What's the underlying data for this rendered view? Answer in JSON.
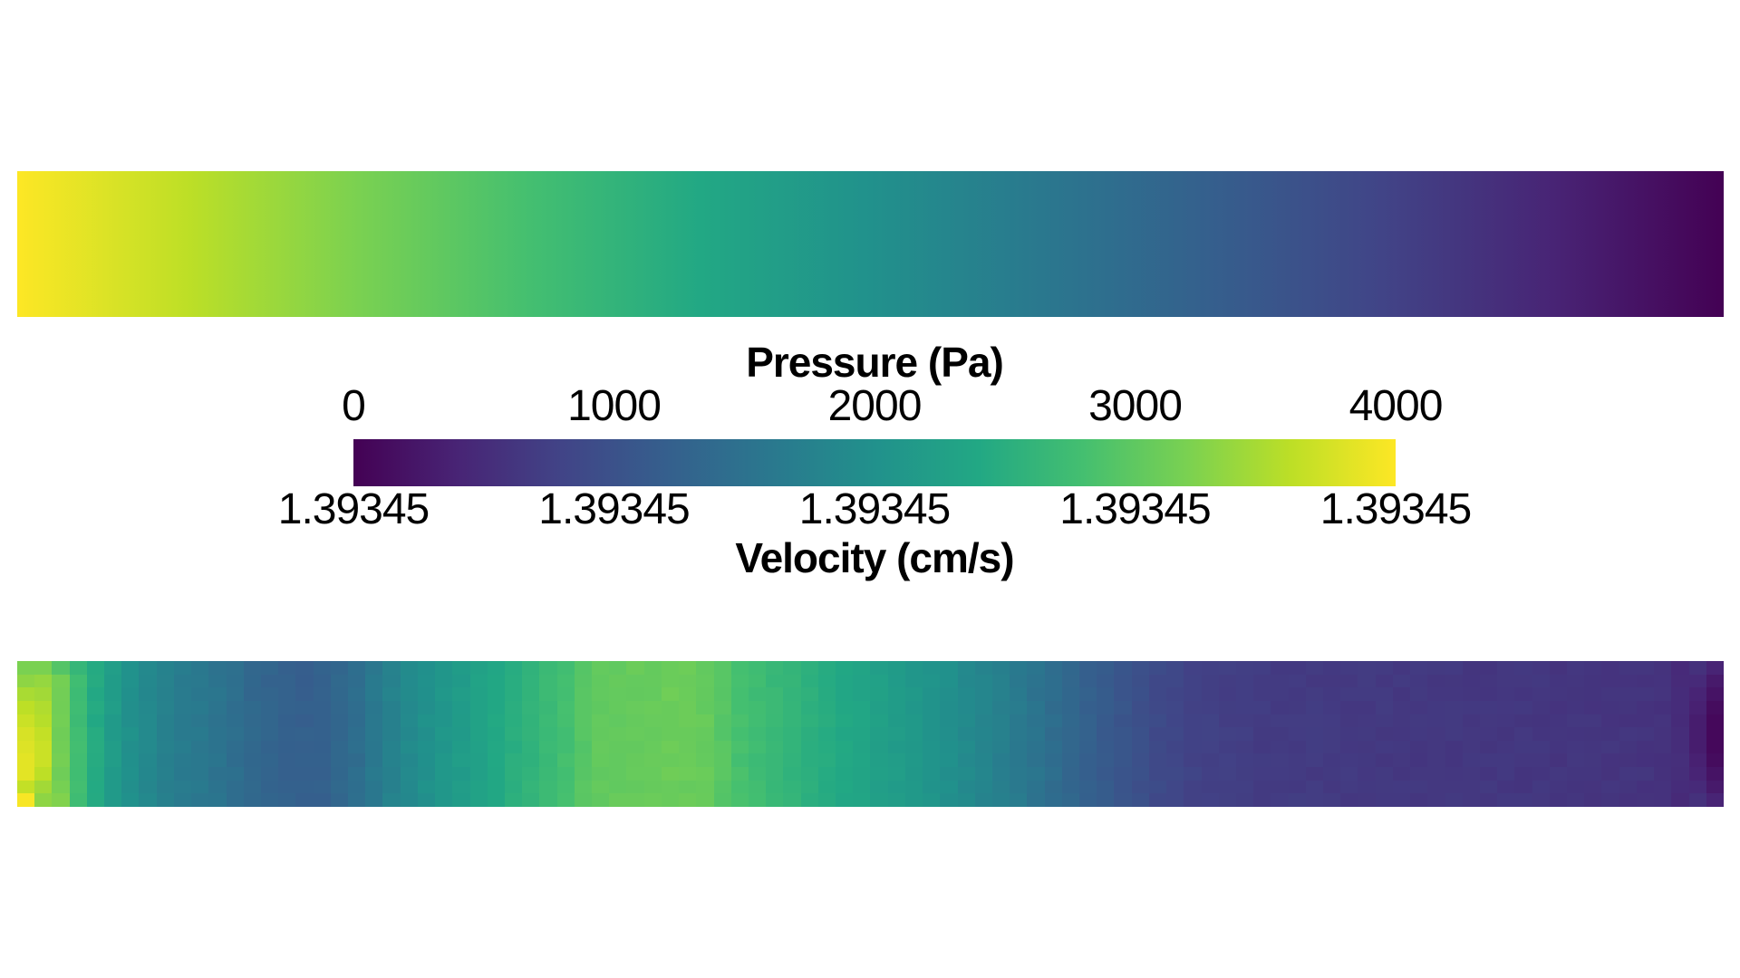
{
  "page": {
    "background": "#ffffff",
    "description": "Scientific visualization: pressure field bar (top), shared viridis color legend (middle), velocity field cell grid (bottom)"
  },
  "colormap_stops": [
    "#440154",
    "#482475",
    "#414487",
    "#355f8d",
    "#2a788e",
    "#21918c",
    "#22a884",
    "#44bf70",
    "#7ad151",
    "#bddf26",
    "#fde725"
  ],
  "legend": {
    "colormap": "viridis",
    "pressure": {
      "title": "Pressure (Pa)",
      "ticks": [
        "0",
        "1000",
        "2000",
        "3000",
        "4000"
      ]
    },
    "velocity": {
      "title": "Velocity (cm/s)",
      "ticks": [
        "1.39345",
        "1.39345",
        "1.39345",
        "1.39345",
        "1.39345"
      ]
    }
  },
  "chart_data": [
    {
      "type": "heatmap",
      "name": "pressure-field",
      "quantity": "Pressure (Pa)",
      "render": "smooth-horizontal-gradient",
      "value_left": 4000,
      "value_right": 0,
      "value_range": [
        0,
        4000
      ],
      "colormap": "viridis"
    },
    {
      "type": "heatmap",
      "name": "velocity-field",
      "quantity": "Velocity (cm/s)",
      "render": "blocky-cell-grid",
      "tick_value": "1.39345",
      "colormap": "viridis",
      "grid": {
        "cols": 98,
        "rows": 11
      },
      "profile": {
        "x_fraction": [
          0.0,
          0.01,
          0.02,
          0.03,
          0.04,
          0.05,
          0.061,
          0.071,
          0.081,
          0.091,
          0.101,
          0.121,
          0.141,
          0.165,
          0.18,
          0.2,
          0.213,
          0.224,
          0.24,
          0.266,
          0.293,
          0.319,
          0.335,
          0.346,
          0.367,
          0.385,
          0.405,
          0.425,
          0.457,
          0.484,
          0.51,
          0.537,
          0.563,
          0.59,
          0.617,
          0.643,
          0.67,
          0.696,
          0.73,
          0.8,
          0.88,
          0.94,
          0.962,
          0.975,
          0.988,
          1.0
        ],
        "t": [
          0.93,
          0.91,
          0.84,
          0.74,
          0.65,
          0.58,
          0.52,
          0.48,
          0.45,
          0.42,
          0.41,
          0.375,
          0.33,
          0.3,
          0.31,
          0.36,
          0.42,
          0.455,
          0.5,
          0.56,
          0.63,
          0.69,
          0.745,
          0.76,
          0.765,
          0.775,
          0.76,
          0.7,
          0.645,
          0.6,
          0.555,
          0.51,
          0.46,
          0.4,
          0.33,
          0.27,
          0.22,
          0.19,
          0.175,
          0.165,
          0.158,
          0.152,
          0.148,
          0.125,
          0.07,
          0.05
        ]
      },
      "cell_overrides": [
        [
          0,
          0,
          0.8
        ],
        [
          0,
          1,
          0.83
        ],
        [
          0,
          2,
          0.87
        ],
        [
          0,
          3,
          0.9
        ],
        [
          0,
          4,
          0.92
        ],
        [
          0,
          5,
          0.94
        ],
        [
          0,
          6,
          0.95
        ],
        [
          0,
          7,
          0.96
        ],
        [
          0,
          8,
          0.96
        ],
        [
          0,
          9,
          0.91
        ],
        [
          0,
          10,
          0.99
        ],
        [
          1,
          0,
          0.8
        ],
        [
          1,
          1,
          0.84
        ],
        [
          1,
          2,
          0.86
        ],
        [
          1,
          3,
          0.88
        ],
        [
          1,
          4,
          0.89
        ],
        [
          1,
          5,
          0.91
        ],
        [
          1,
          6,
          0.92
        ],
        [
          1,
          7,
          0.92
        ],
        [
          1,
          8,
          0.9
        ],
        [
          1,
          9,
          0.86
        ],
        [
          1,
          10,
          0.83
        ],
        [
          2,
          0,
          0.73
        ],
        [
          2,
          10,
          0.81
        ],
        [
          3,
          0,
          0.66
        ],
        [
          96,
          0,
          0.14
        ],
        [
          96,
          1,
          0.12
        ],
        [
          96,
          2,
          0.1
        ],
        [
          96,
          3,
          0.09
        ],
        [
          96,
          4,
          0.08
        ],
        [
          96,
          5,
          0.08
        ],
        [
          96,
          6,
          0.08
        ],
        [
          96,
          7,
          0.09
        ],
        [
          96,
          8,
          0.1
        ],
        [
          96,
          9,
          0.12
        ],
        [
          96,
          10,
          0.14
        ],
        [
          97,
          0,
          0.1
        ],
        [
          97,
          1,
          0.07
        ],
        [
          97,
          2,
          0.05
        ],
        [
          97,
          3,
          0.03
        ],
        [
          97,
          4,
          0.02
        ],
        [
          97,
          5,
          0.02
        ],
        [
          97,
          6,
          0.02
        ],
        [
          97,
          7,
          0.03
        ],
        [
          97,
          8,
          0.05
        ],
        [
          97,
          9,
          0.07
        ],
        [
          97,
          10,
          0.1
        ]
      ],
      "jitter_amplitude": 0.018
    }
  ]
}
